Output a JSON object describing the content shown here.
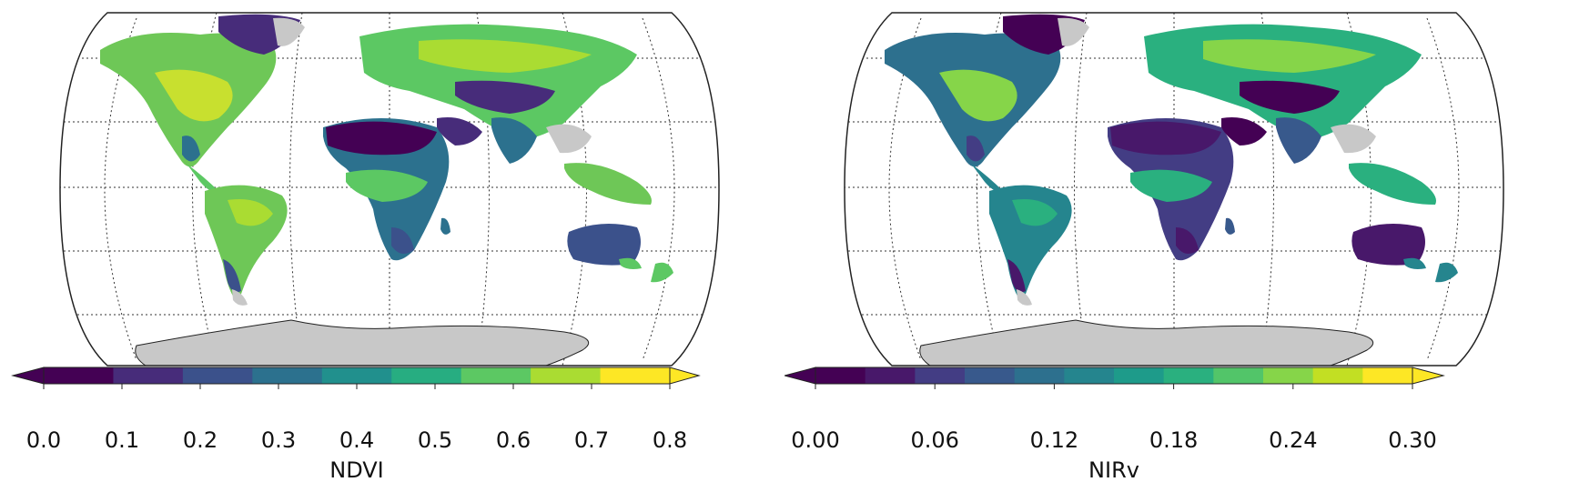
{
  "maps": [
    {
      "id": "ndvi",
      "colorbar": {
        "label": "NDVI",
        "ticks": [
          "0.0",
          "0.1",
          "0.2",
          "0.3",
          "0.4",
          "0.5",
          "0.6",
          "0.7",
          "0.8"
        ],
        "min": 0.0,
        "max": 0.8,
        "extend": "both",
        "colors": [
          "#440154",
          "#472c7a",
          "#3b518b",
          "#2c718e",
          "#21908d",
          "#27ad81",
          "#5cc863",
          "#aadc32",
          "#fde725"
        ]
      }
    },
    {
      "id": "nirv",
      "colorbar": {
        "label": "NIRv",
        "ticks": [
          "0.00",
          "0.06",
          "0.12",
          "0.18",
          "0.24",
          "0.30"
        ],
        "min": 0.0,
        "max": 0.3,
        "extend": "both",
        "colors": [
          "#440154",
          "#48186a",
          "#433d84",
          "#38598c",
          "#2d708e",
          "#25858e",
          "#1e9b8a",
          "#2ab07f",
          "#52c569",
          "#86d549",
          "#c2df23",
          "#fde725"
        ]
      }
    }
  ],
  "map_style": {
    "projection": "Robinson",
    "gridlines": "dotted",
    "no_data_color": "#c8c8c8",
    "ocean_color": "#ffffff"
  }
}
